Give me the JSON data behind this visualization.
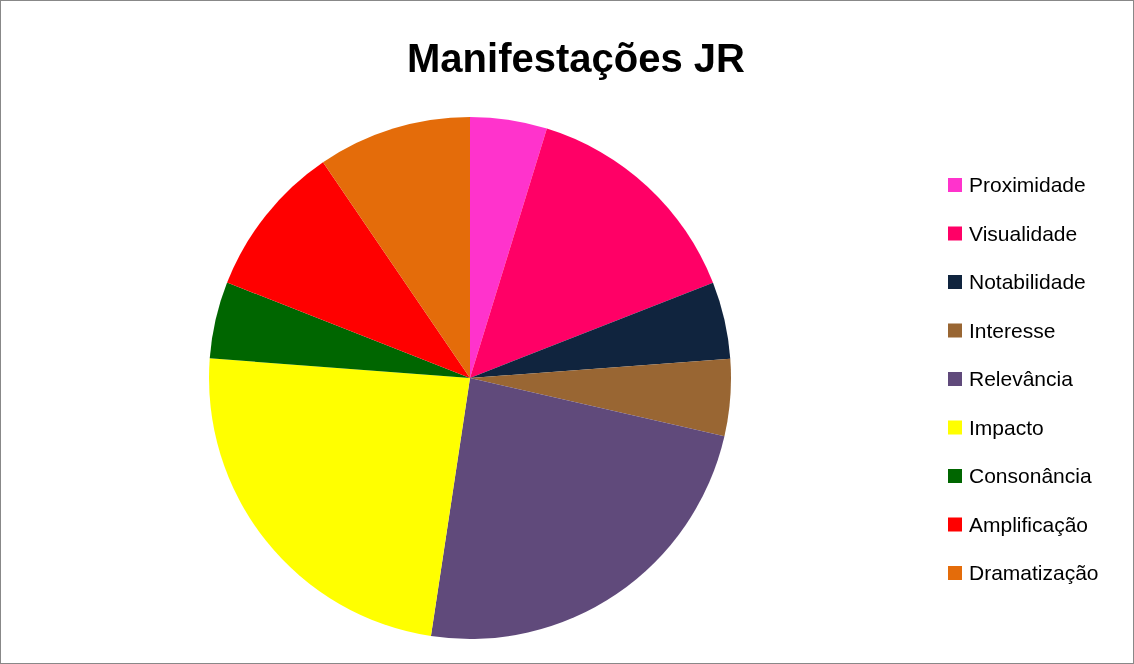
{
  "chart_data": {
    "type": "pie",
    "title": "Manifestações JR",
    "categories": [
      "Proximidade",
      "Visualidade",
      "Notabilidade",
      "Interesse",
      "Relevância",
      "Impacto",
      "Consonância",
      "Amplificação",
      "Dramatização"
    ],
    "values": [
      4.76,
      14.3,
      4.76,
      4.76,
      23.81,
      23.81,
      4.76,
      9.52,
      9.52
    ],
    "colors": [
      "#ff33cc",
      "#ff0066",
      "#10243e",
      "#996633",
      "#604a7b",
      "#ffff00",
      "#006600",
      "#ff0000",
      "#e46c0a"
    ],
    "legend": "right"
  }
}
